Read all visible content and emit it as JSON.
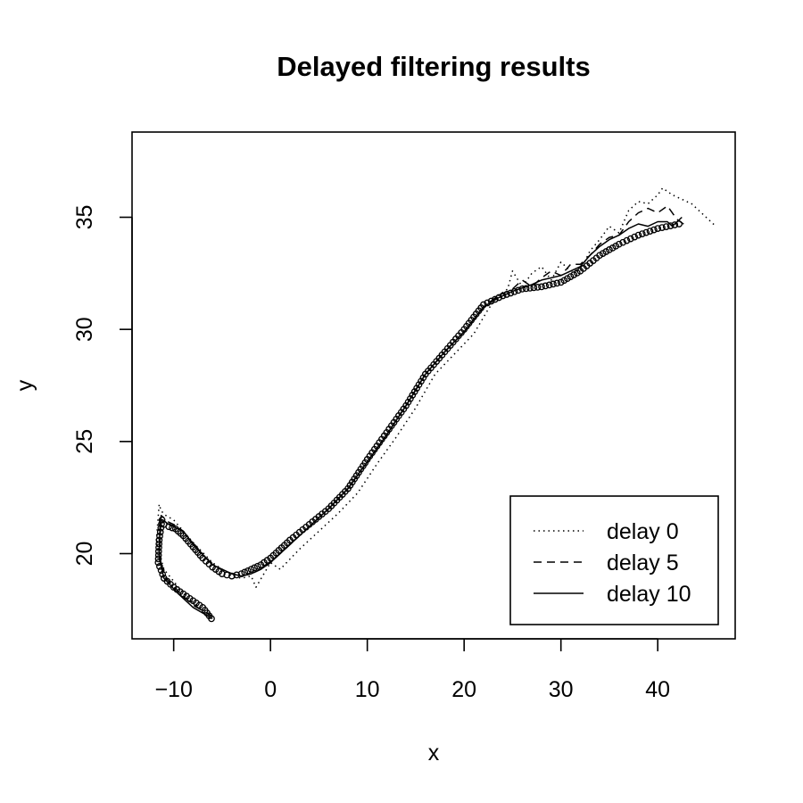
{
  "chart_data": {
    "type": "line",
    "title": "Delayed filtering results",
    "xlabel": "x",
    "ylabel": "y",
    "xlim": [
      -14.3,
      48.0
    ],
    "ylim": [
      16.2,
      38.8
    ],
    "xticks": [
      "−10",
      "0",
      "10",
      "20",
      "30",
      "40"
    ],
    "xtick_values": [
      -10,
      0,
      10,
      20,
      30,
      40
    ],
    "yticks": [
      "20",
      "25",
      "30",
      "35"
    ],
    "ytick_values": [
      20,
      25,
      30,
      35
    ],
    "grid": false,
    "legend_position": "bottom-right",
    "legend": [
      {
        "label": "delay 0",
        "dash": "dotted"
      },
      {
        "label": "delay 5",
        "dash": "dashed"
      },
      {
        "label": "delay 10",
        "dash": "solid"
      }
    ],
    "points": {
      "marker": "open-circle",
      "x": [
        -6.1,
        -7.0,
        -8.0,
        -9.0,
        -10.0,
        -11.0,
        -11.6,
        -11.5,
        -11.2,
        -11.0,
        -10.5,
        -9.8,
        -9.0,
        -8.0,
        -7.0,
        -6.0,
        -5.0,
        -4.0,
        -3.0,
        -2.0,
        -1.0,
        0.0,
        2.0,
        4.0,
        6.0,
        8.0,
        10.0,
        12.0,
        14.0,
        16.0,
        18.0,
        20.0,
        22.0,
        24.0,
        26.0,
        28.0,
        30.0,
        32.0,
        34.0,
        36.0,
        38.0,
        40.0,
        42.2
      ],
      "y": [
        17.1,
        17.6,
        17.9,
        18.2,
        18.5,
        18.9,
        19.6,
        20.6,
        21.5,
        21.3,
        21.2,
        21.1,
        20.8,
        20.3,
        19.8,
        19.4,
        19.1,
        19.0,
        19.1,
        19.3,
        19.5,
        19.8,
        20.6,
        21.3,
        22.0,
        22.9,
        24.2,
        25.4,
        26.6,
        28.0,
        29.0,
        30.0,
        31.1,
        31.5,
        31.8,
        31.9,
        32.1,
        32.6,
        33.3,
        33.8,
        34.2,
        34.5,
        34.7
      ]
    },
    "series": [
      {
        "dash": "dotted",
        "x": [
          -6.0,
          -8.0,
          -9.5,
          -11.0,
          -11.8,
          -11.5,
          -11.3,
          -10.8,
          -10.0,
          -9.0,
          -8.0,
          -6.0,
          -4.0,
          -3.0,
          -2.0,
          -1.5,
          0.0,
          1.0,
          3.0,
          5.0,
          7.0,
          9.0,
          11.0,
          13.0,
          15.0,
          17.0,
          19.0,
          21.0,
          22.5,
          23.5,
          24.5,
          25.0,
          26.0,
          27.0,
          28.0,
          29.0,
          30.0,
          31.0,
          32.0,
          33.0,
          34.0,
          35.0,
          36.0,
          37.0,
          38.0,
          39.0,
          40.0,
          40.5,
          41.5,
          42.5,
          43.5,
          45.0,
          46.0
        ],
        "y": [
          17.2,
          17.8,
          18.5,
          19.3,
          20.5,
          22.2,
          21.9,
          21.7,
          21.5,
          21.0,
          20.5,
          19.6,
          19.0,
          18.9,
          19.0,
          18.5,
          19.6,
          19.3,
          20.2,
          21.0,
          21.8,
          22.7,
          24.0,
          25.2,
          26.5,
          28.0,
          28.9,
          29.8,
          30.9,
          31.5,
          31.8,
          32.6,
          31.9,
          32.5,
          32.8,
          32.2,
          33.0,
          32.6,
          32.6,
          33.5,
          34.0,
          34.6,
          34.3,
          35.3,
          35.7,
          35.6,
          36.0,
          36.3,
          36.0,
          35.8,
          35.6,
          35.0,
          34.6
        ]
      },
      {
        "dash": "dashed",
        "x": [
          -6.0,
          -8.0,
          -9.5,
          -11.0,
          -11.5,
          -11.3,
          -11.0,
          -10.5,
          -10.0,
          -9.0,
          -8.0,
          -6.0,
          -4.0,
          -3.0,
          -2.0,
          -1.0,
          0.0,
          2.0,
          4.0,
          6.0,
          8.0,
          10.0,
          12.0,
          14.0,
          16.0,
          18.0,
          20.0,
          22.0,
          23.5,
          25.0,
          26.0,
          27.0,
          28.0,
          29.0,
          30.0,
          31.0,
          32.0,
          33.0,
          34.0,
          35.0,
          36.0,
          37.0,
          38.0,
          39.0,
          40.0,
          41.0,
          42.0,
          43.0
        ],
        "y": [
          17.2,
          17.7,
          18.3,
          19.0,
          20.0,
          21.7,
          21.6,
          21.4,
          21.3,
          21.0,
          20.4,
          19.5,
          19.1,
          19.0,
          19.1,
          19.3,
          19.6,
          20.4,
          21.2,
          22.0,
          22.9,
          24.1,
          25.3,
          26.6,
          28.0,
          29.0,
          29.9,
          31.0,
          31.5,
          31.8,
          32.2,
          31.9,
          32.3,
          32.6,
          32.4,
          32.9,
          32.9,
          33.3,
          33.8,
          34.1,
          34.2,
          34.8,
          35.2,
          35.4,
          35.2,
          35.5,
          34.9,
          34.6
        ]
      },
      {
        "dash": "solid",
        "x": [
          -6.0,
          -8.0,
          -9.5,
          -11.0,
          -11.5,
          -11.4,
          -11.1,
          -10.5,
          -10.0,
          -9.0,
          -8.0,
          -6.0,
          -4.0,
          -3.0,
          -2.0,
          -1.0,
          0.0,
          2.0,
          4.0,
          6.0,
          8.0,
          10.0,
          12.0,
          14.0,
          16.0,
          18.0,
          20.0,
          22.0,
          23.5,
          25.0,
          27.0,
          28.0,
          29.0,
          30.0,
          31.0,
          32.0,
          33.0,
          34.0,
          35.0,
          36.0,
          37.0,
          38.0,
          39.0,
          40.0,
          41.0,
          41.5,
          42.5
        ],
        "y": [
          17.1,
          17.6,
          18.2,
          18.9,
          19.8,
          21.5,
          21.5,
          21.3,
          21.2,
          21.0,
          20.4,
          19.5,
          19.1,
          19.0,
          19.1,
          19.3,
          19.6,
          20.4,
          21.2,
          22.0,
          22.9,
          24.1,
          25.3,
          26.6,
          28.0,
          29.0,
          29.9,
          31.0,
          31.4,
          31.7,
          32.0,
          32.2,
          32.3,
          32.4,
          32.6,
          32.8,
          33.3,
          33.7,
          34.0,
          34.2,
          34.5,
          34.7,
          34.6,
          34.8,
          34.8,
          34.6,
          35.0
        ]
      }
    ]
  }
}
